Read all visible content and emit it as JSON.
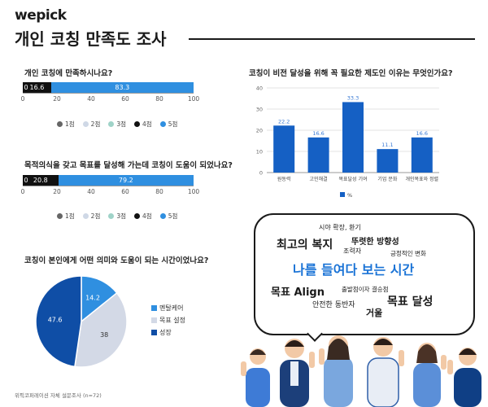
{
  "header": {
    "logo": "wepick",
    "title": "개인 코칭 만족도 조사"
  },
  "colors": {
    "s1": "#666666",
    "s2": "#cfd8e6",
    "s3": "#9fd3c8",
    "s4": "#111111",
    "s5": "#2f8fe0",
    "bar": "#1560c4",
    "pie_mental": "#2f8fe0",
    "pie_goal": "#d3d9e6",
    "pie_growth": "#0f4ea6"
  },
  "chart_data": [
    {
      "id": "q1",
      "type": "bar",
      "orientation": "horizontal-stacked",
      "title": "개인 코칭에 만족하시나요?",
      "categories": [
        "1점",
        "2점",
        "3점",
        "4점",
        "5점"
      ],
      "values": [
        0,
        0,
        0,
        16.6,
        83.3
      ],
      "segment_labels": [
        "0",
        "",
        "",
        "16.6",
        "83.3"
      ],
      "xlim": [
        0,
        100
      ],
      "xticks": [
        "0",
        "20",
        "40",
        "60",
        "80",
        "100"
      ],
      "legend": "bottom"
    },
    {
      "id": "q2",
      "type": "bar",
      "orientation": "horizontal-stacked",
      "title": "목적의식을 갖고 목표를 달성해 가는데 코칭이 도움이 되었나요?",
      "categories": [
        "1점",
        "2점",
        "3점",
        "4점",
        "5점"
      ],
      "values": [
        0,
        0,
        0,
        20.8,
        79.2
      ],
      "segment_labels": [
        "0",
        "",
        "",
        "20.8",
        "79.2"
      ],
      "xlim": [
        0,
        100
      ],
      "xticks": [
        "0",
        "20",
        "40",
        "60",
        "80",
        "100"
      ],
      "legend": "bottom"
    },
    {
      "id": "q3",
      "type": "bar",
      "title": "코칭이 비전 달성을 위해 꼭 필요한 제도인 이유는 무엇인가요?",
      "categories": [
        "원동력",
        "고민해결",
        "목표달성 기여",
        "기업 문화",
        "개인목표와 정렬"
      ],
      "series": [
        {
          "name": "%",
          "values": [
            22.2,
            16.6,
            33.3,
            11.1,
            16.6
          ]
        }
      ],
      "data_labels": [
        "22.2",
        "16.6",
        "33.3",
        "11.1",
        "16.6"
      ],
      "ylim": [
        0,
        40
      ],
      "yticks": [
        "0",
        "10",
        "20",
        "30",
        "40"
      ],
      "grid": true,
      "legend": "bottom"
    },
    {
      "id": "q4",
      "type": "pie",
      "title": "코칭이 본인에게 어떤 의미와 도움이 되는 시간이었나요?",
      "categories": [
        "멘탈케어",
        "목표 설정",
        "성장"
      ],
      "values": [
        14.2,
        38,
        47.6
      ],
      "data_labels": [
        "14.2",
        "38",
        "47.6"
      ],
      "legend": "right"
    }
  ],
  "word_cloud": {
    "words": [
      {
        "text": "시야 확장, 환기",
        "size": 8
      },
      {
        "text": "최고의 복지",
        "size": 14
      },
      {
        "text": "뚜렷한 방향성",
        "size": 10
      },
      {
        "text": "조력자",
        "size": 8
      },
      {
        "text": "긍정적인 변화",
        "size": 7.5
      },
      {
        "text": "나를 들여다 보는 시간",
        "size": 16
      },
      {
        "text": "목표 Align",
        "size": 13
      },
      {
        "text": "출발점이자 결승점",
        "size": 7.5
      },
      {
        "text": "안전한 동반자",
        "size": 9
      },
      {
        "text": "목표 달성",
        "size": 14
      },
      {
        "text": "거울",
        "size": 11
      }
    ]
  },
  "footer": {
    "source": "위픽코퍼레이션 자체 설문조사 (n=72)"
  }
}
